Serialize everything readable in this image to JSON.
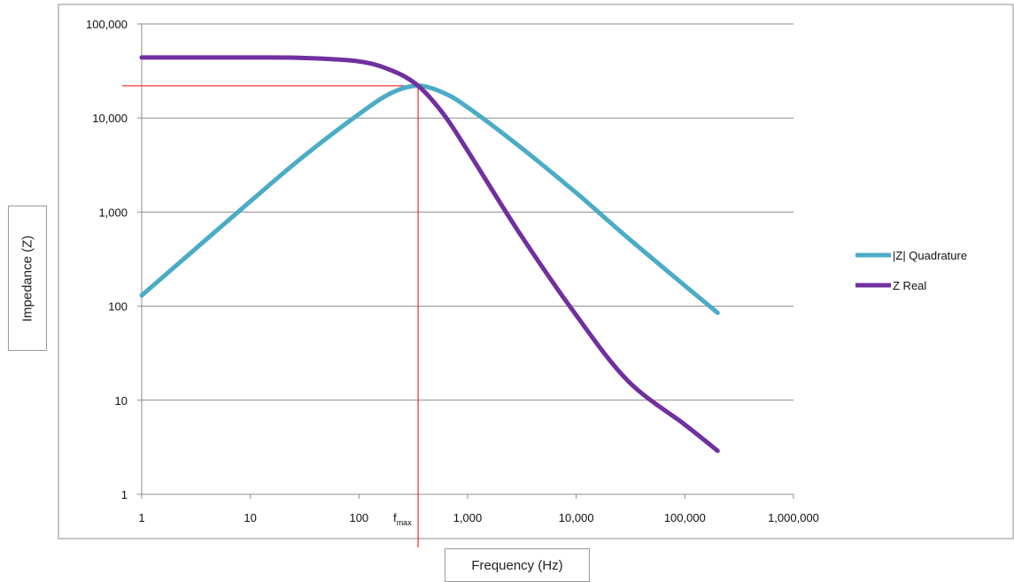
{
  "chart_data": {
    "type": "line",
    "title": "",
    "xlabel": "Frequency (Hz)",
    "ylabel": "Impedance (Z)",
    "xscale": "log",
    "yscale": "log",
    "xlim": [
      1,
      1000000
    ],
    "ylim": [
      1,
      100000
    ],
    "x_ticks": [
      {
        "value": 1,
        "label": "1"
      },
      {
        "value": 10,
        "label": "10"
      },
      {
        "value": 100,
        "label": "100"
      },
      {
        "value": 1000,
        "label": "1,000"
      },
      {
        "value": 10000,
        "label": "10,000"
      },
      {
        "value": 100000,
        "label": "100,000"
      },
      {
        "value": 1000000,
        "label": "1,000,000"
      }
    ],
    "y_ticks": [
      {
        "value": 1,
        "label": "1"
      },
      {
        "value": 10,
        "label": "10"
      },
      {
        "value": 100,
        "label": "100"
      },
      {
        "value": 1000,
        "label": "1,000"
      },
      {
        "value": 10000,
        "label": "10,000"
      },
      {
        "value": 100000,
        "label": "100,000"
      }
    ],
    "grid": "horizontal",
    "legend_position": "right",
    "series": [
      {
        "name": "|Z| Quadrature",
        "color": "#4bacc6",
        "points": [
          [
            1,
            130
          ],
          [
            3,
            390
          ],
          [
            10,
            1300
          ],
          [
            30,
            3800
          ],
          [
            100,
            11000
          ],
          [
            200,
            18500
          ],
          [
            350,
            22000
          ],
          [
            600,
            18500
          ],
          [
            1000,
            13000
          ],
          [
            3000,
            5000
          ],
          [
            10000,
            1600
          ],
          [
            30000,
            530
          ],
          [
            100000,
            165
          ],
          [
            200000,
            85
          ]
        ]
      },
      {
        "name": "Z Real",
        "color": "#7030a0",
        "points": [
          [
            1,
            44000
          ],
          [
            10,
            44000
          ],
          [
            30,
            43500
          ],
          [
            100,
            40000
          ],
          [
            200,
            32000
          ],
          [
            350,
            22000
          ],
          [
            600,
            11000
          ],
          [
            1000,
            4500
          ],
          [
            3000,
            600
          ],
          [
            10000,
            80
          ],
          [
            30000,
            16
          ],
          [
            100000,
            5.5
          ],
          [
            200000,
            2.9
          ]
        ]
      }
    ],
    "annotations": {
      "marker_label": "f",
      "marker_subscript": "max",
      "marker_x": 350,
      "marker_y": 22000,
      "marker_color": "#ff0000"
    }
  }
}
